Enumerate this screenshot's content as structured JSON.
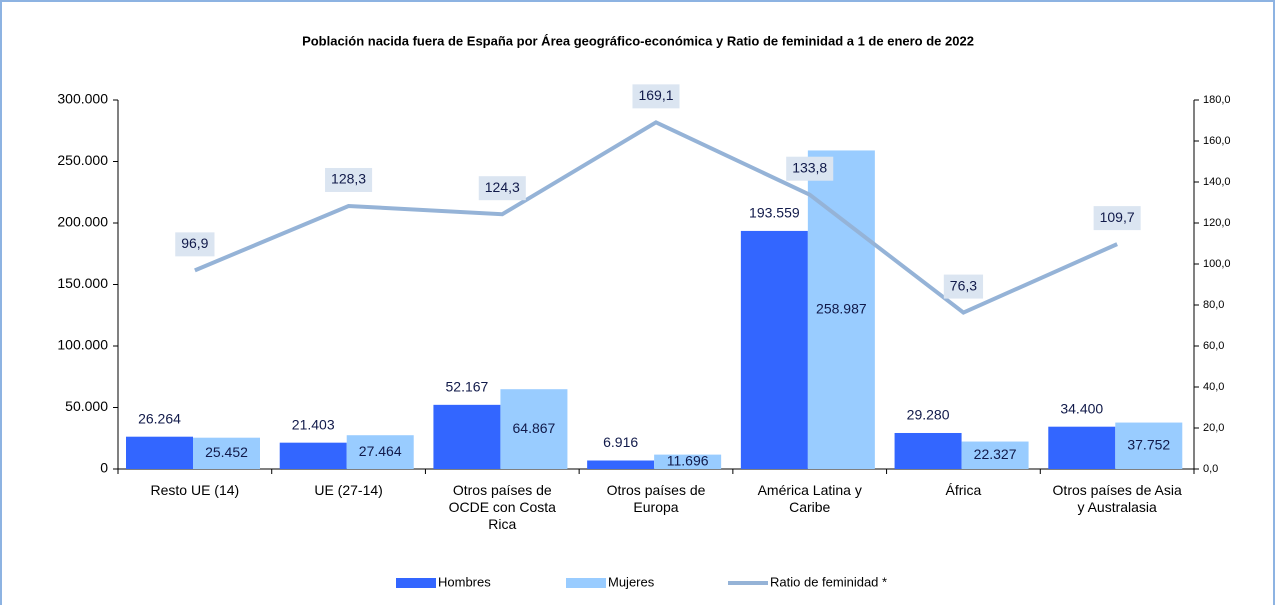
{
  "chart_data": {
    "type": "bar-line",
    "title": "Población nacida fuera de España por Área geográfico-económica y Ratio de feminidad a 1 de enero de 2022",
    "categories": [
      "Resto UE (14)",
      "UE (27-14)",
      "Otros países de OCDE con Costa Rica",
      "Otros países de Europa",
      "América Latina y Caribe",
      "África",
      "Otros países de Asia y Australasia"
    ],
    "series": [
      {
        "name": "Hombres",
        "type": "bar",
        "color": "#3366ff",
        "values": [
          26264,
          21403,
          52167,
          6916,
          193559,
          29280,
          34400
        ],
        "value_labels": [
          "26.264",
          "21.403",
          "52.167",
          "6.916",
          "193.559",
          "29.280",
          "34.400"
        ]
      },
      {
        "name": "Mujeres",
        "type": "bar",
        "color": "#99ccff",
        "values": [
          25452,
          27464,
          64867,
          11696,
          258987,
          22327,
          37752
        ],
        "value_labels": [
          "25.452",
          "27.464",
          "64.867",
          "11.696",
          "258.987",
          "22.327",
          "37.752"
        ]
      },
      {
        "name": "Ratio de feminidad *",
        "type": "line",
        "axis": "y2",
        "color": "#95b3d7",
        "values": [
          96.9,
          128.3,
          124.3,
          169.1,
          133.8,
          76.3,
          109.7
        ],
        "value_labels": [
          "96,9",
          "128,3",
          "124,3",
          "169,1",
          "133,8",
          "76,3",
          "109,7"
        ]
      }
    ],
    "ylim": [
      0,
      300000
    ],
    "yticks": [
      0,
      {
        "value": 50000,
        "label": "50.000"
      },
      {
        "value": 100000,
        "label": "100.000"
      },
      {
        "value": 150000,
        "label": "150.000"
      },
      {
        "value": 200000,
        "label": "200.000"
      },
      {
        "value": 250000,
        "label": "250.000"
      },
      {
        "value": 300000,
        "label": "300.000"
      }
    ],
    "y2lim": [
      0,
      180
    ],
    "y2ticks": [
      {
        "value": 0,
        "label": "0,0"
      },
      {
        "value": 20,
        "label": "20,0"
      },
      {
        "value": 40,
        "label": "40,0"
      },
      {
        "value": 60,
        "label": "60,0"
      },
      {
        "value": 80,
        "label": "80,0"
      },
      {
        "value": 100,
        "label": "100,0"
      },
      {
        "value": 120,
        "label": "120,0"
      },
      {
        "value": 140,
        "label": "140,0"
      },
      {
        "value": 160,
        "label": "160,0"
      },
      {
        "value": 180,
        "label": "180,0"
      }
    ],
    "legend": "bottom"
  }
}
